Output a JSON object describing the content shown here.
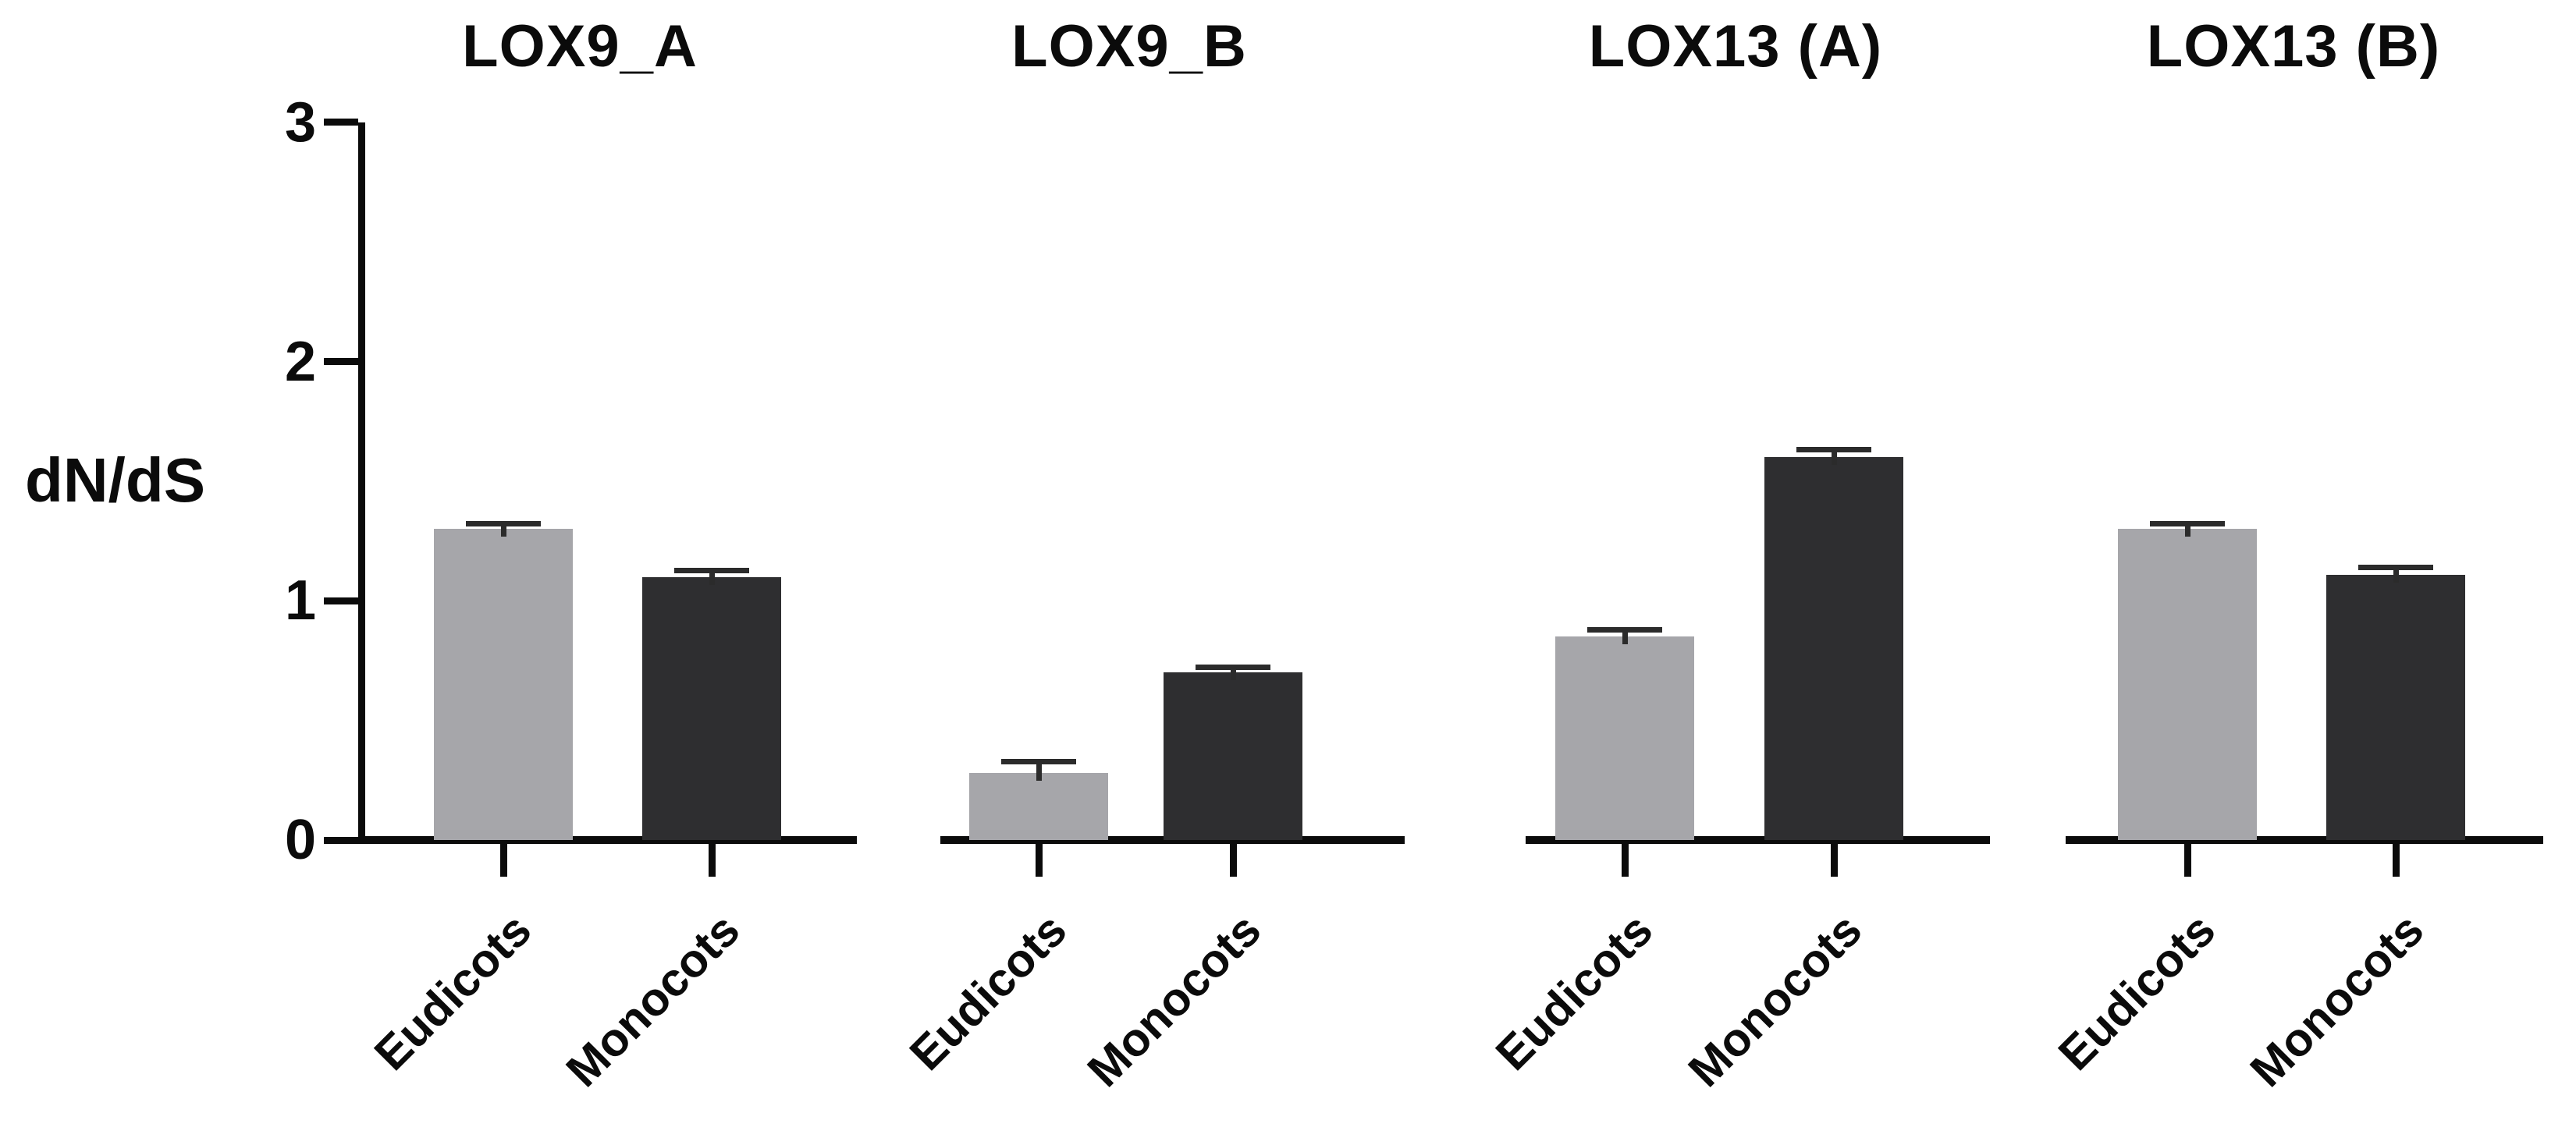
{
  "figure": {
    "y_axis_title": "dN/dS",
    "background": "#ffffff",
    "axis_color": "#0b0b0b",
    "series_colors": {
      "Eudicots": "#a6a6aa",
      "Monocots": "#2e2e30"
    },
    "error_bar_color": "#2b2b2b"
  },
  "chart_data": [
    {
      "type": "bar",
      "title": "LOX9_A",
      "ylabel": "dN/dS",
      "ylim": [
        0,
        3
      ],
      "yticks": [
        0,
        1,
        2,
        3
      ],
      "grid": false,
      "legend": "none",
      "categories": [
        "Eudicots",
        "Monocots"
      ],
      "values": [
        1.3,
        1.1
      ],
      "errors": [
        0.015,
        0.02
      ]
    },
    {
      "type": "bar",
      "title": "LOX9_B",
      "ylim": [
        0,
        3
      ],
      "categories": [
        "Eudicots",
        "Monocots"
      ],
      "values": [
        0.28,
        0.7
      ],
      "errors": [
        0.04,
        0.015
      ]
    },
    {
      "type": "bar",
      "title": "LOX13 (A)",
      "ylim": [
        0,
        3
      ],
      "categories": [
        "Eudicots",
        "Monocots"
      ],
      "values": [
        0.85,
        1.6
      ],
      "errors": [
        0.02,
        0.025
      ]
    },
    {
      "type": "bar",
      "title": "LOX13 (B)",
      "ylim": [
        0,
        3
      ],
      "categories": [
        "Eudicots",
        "Monocots"
      ],
      "values": [
        1.3,
        1.11
      ],
      "errors": [
        0.015,
        0.02
      ]
    }
  ]
}
